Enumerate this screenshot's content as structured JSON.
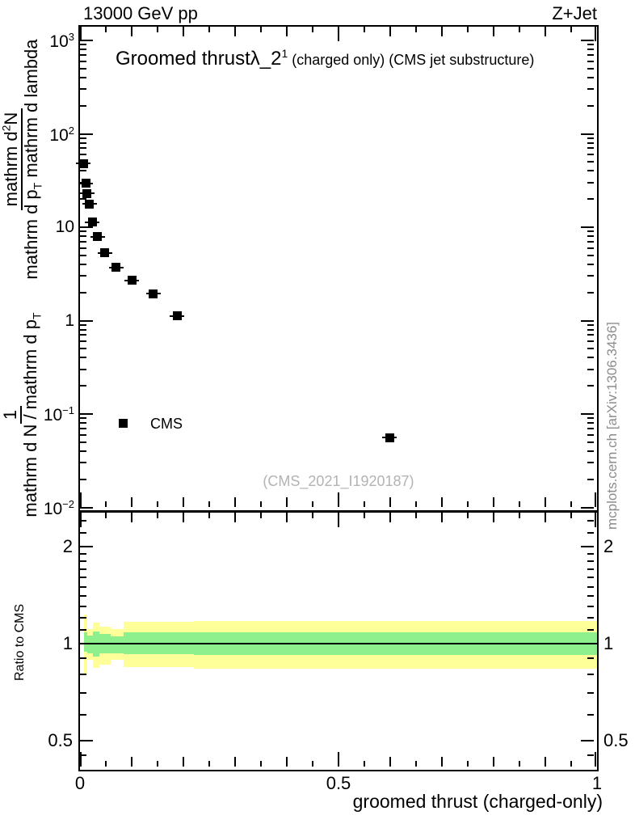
{
  "chart_data": {
    "type": "scatter",
    "header": {
      "left": "13000 GeV pp",
      "right": "Z+Jet"
    },
    "title": {
      "main": "Groomed thrust",
      "symbol": "λ_2",
      "symbol_sup": "1",
      "suffix": " (charged only) (CMS jet substructure)"
    },
    "xlabel": "groomed thrust (charged-only)",
    "ylabel": {
      "frac1_num_parts": [
        {
          "t": "1"
        }
      ],
      "frac1_den_parts": [
        {
          "t": "mathrm d N / mathrm d p"
        },
        {
          "sub": "T"
        }
      ],
      "frac2_num_parts": [
        {
          "t": "mathrm d"
        },
        {
          "sup": "2"
        },
        {
          "t": "N"
        }
      ],
      "frac2_den_parts": [
        {
          "t": "mathrm d p"
        },
        {
          "sub": "T"
        },
        {
          "t": " mathrm d lambda"
        }
      ]
    },
    "ratio_ylabel": "Ratio to CMS",
    "legend": {
      "label": "CMS",
      "marker": "filled-black-square"
    },
    "watermark": "(CMS_2021_I1920187)",
    "side_note": "mcplots.cern.ch [arXiv:1306.3436]",
    "x_axis": {
      "min": 0,
      "max": 1,
      "major_ticks": [
        0,
        0.5,
        1
      ],
      "major_labels": [
        "0",
        "0.5",
        "1"
      ],
      "minor_step": 0.05,
      "grid": false
    },
    "y_axis": {
      "scale": "log",
      "min": 0.0093,
      "max": 1400,
      "tick_labels": [
        {
          "v": 1000,
          "text": "10",
          "sup": "3"
        },
        {
          "v": 100,
          "text": "10",
          "sup": "2"
        },
        {
          "v": 10,
          "text": "10"
        },
        {
          "v": 1,
          "text": "1"
        },
        {
          "v": 0.1,
          "text": "10",
          "sup": "−1"
        },
        {
          "v": 0.01,
          "text": "10",
          "sup": "−2"
        }
      ]
    },
    "ratio_axis": {
      "scale": "log",
      "min": 0.405,
      "max": 2.54,
      "tick_labels": [
        {
          "v": 2,
          "text": "2"
        },
        {
          "v": 1,
          "text": "1"
        },
        {
          "v": 0.5,
          "text": "0.5"
        }
      ],
      "minor_ticks": [
        0.45,
        0.6,
        0.7,
        0.8,
        0.9,
        1.1,
        1.2,
        1.3,
        1.4,
        1.5,
        1.6,
        1.7,
        1.8,
        1.9,
        2.2,
        2.4
      ],
      "reference_line": 1
    },
    "series": [
      {
        "name": "CMS",
        "marker": "black-square",
        "points": [
          {
            "x": 0.007,
            "y": 48
          },
          {
            "x": 0.011,
            "y": 29.5
          },
          {
            "x": 0.014,
            "y": 23
          },
          {
            "x": 0.018,
            "y": 17.8
          },
          {
            "x": 0.024,
            "y": 11.3
          },
          {
            "x": 0.034,
            "y": 7.9
          },
          {
            "x": 0.048,
            "y": 5.3
          },
          {
            "x": 0.07,
            "y": 3.7
          },
          {
            "x": 0.1,
            "y": 2.7
          },
          {
            "x": 0.142,
            "y": 1.95
          },
          {
            "x": 0.188,
            "y": 1.12
          },
          {
            "x": 0.599,
            "y": 0.056
          }
        ]
      }
    ],
    "ratio_bands": {
      "outer_color": "#ffff99",
      "inner_color": "#8df08d",
      "segments": [
        {
          "x0": 0.008,
          "x1": 0.0135,
          "ylo": 0.8,
          "yhi": 1.23,
          "glo": 0.94,
          "ghi": 1.08
        },
        {
          "x0": 0.0135,
          "x1": 0.025,
          "ylo": 0.89,
          "yhi": 1.11,
          "glo": 0.93,
          "ghi": 1.06
        },
        {
          "x0": 0.025,
          "x1": 0.038,
          "ylo": 0.84,
          "yhi": 1.16,
          "glo": 0.91,
          "ghi": 1.09
        },
        {
          "x0": 0.038,
          "x1": 0.059,
          "ylo": 0.86,
          "yhi": 1.13,
          "glo": 0.93,
          "ghi": 1.07
        },
        {
          "x0": 0.059,
          "x1": 0.085,
          "ylo": 0.89,
          "yhi": 1.11,
          "glo": 0.93,
          "ghi": 1.05
        },
        {
          "x0": 0.085,
          "x1": 0.22,
          "ylo": 0.845,
          "yhi": 1.17,
          "glo": 0.925,
          "ghi": 1.08
        },
        {
          "x0": 0.22,
          "x1": 1.0,
          "ylo": 0.835,
          "yhi": 1.175,
          "glo": 0.92,
          "ghi": 1.08
        }
      ]
    }
  }
}
